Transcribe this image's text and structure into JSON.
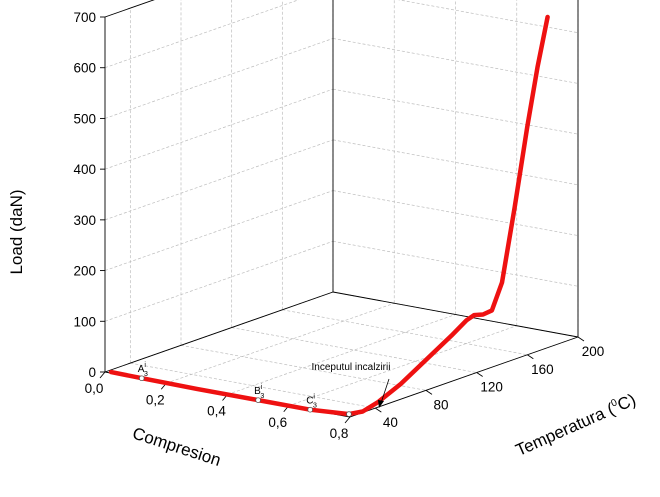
{
  "chart_data": {
    "type": "line",
    "projection": "3d",
    "axes": {
      "z": {
        "label": "Load (daN)",
        "ticks": [
          "0",
          "100",
          "200",
          "300",
          "400",
          "500",
          "600",
          "700"
        ],
        "range": [
          0,
          700
        ]
      },
      "x": {
        "label": "Compresion",
        "ticks": [
          "0,0",
          "0,2",
          "0,4",
          "0,6",
          "0,8"
        ],
        "range": [
          0,
          0.8
        ]
      },
      "y": {
        "label_main": "Temperatura (",
        "label_sup": "0",
        "label_end": "C)",
        "ticks": [
          "40",
          "80",
          "120",
          "160",
          "200"
        ],
        "range": [
          20,
          200
        ]
      }
    },
    "grid": true,
    "series": [
      {
        "color": "#ee1111",
        "points": [
          {
            "x": 0.02,
            "y": 20,
            "z": 2
          },
          {
            "x": 0.12,
            "y": 20,
            "z": 1
          },
          {
            "x": 0.3,
            "y": 20,
            "z": 0
          },
          {
            "x": 0.5,
            "y": 20,
            "z": 0
          },
          {
            "x": 0.67,
            "y": 20,
            "z": 0
          },
          {
            "x": 0.78,
            "y": 24,
            "z": 0
          },
          {
            "x": 0.8,
            "y": 30,
            "z": 2
          },
          {
            "x": 0.8,
            "y": 42,
            "z": 10
          },
          {
            "x": 0.8,
            "y": 60,
            "z": 30
          },
          {
            "x": 0.8,
            "y": 80,
            "z": 60
          },
          {
            "x": 0.8,
            "y": 100,
            "z": 90
          },
          {
            "x": 0.8,
            "y": 112,
            "z": 110
          },
          {
            "x": 0.8,
            "y": 118,
            "z": 115
          },
          {
            "x": 0.8,
            "y": 125,
            "z": 110
          },
          {
            "x": 0.8,
            "y": 132,
            "z": 112
          },
          {
            "x": 0.8,
            "y": 140,
            "z": 160
          },
          {
            "x": 0.8,
            "y": 150,
            "z": 300
          },
          {
            "x": 0.8,
            "y": 160,
            "z": 450
          },
          {
            "x": 0.8,
            "y": 168,
            "z": 560
          },
          {
            "x": 0.8,
            "y": 176,
            "z": 652
          }
        ]
      }
    ],
    "markers": [
      {
        "label": "A",
        "sup": "i",
        "sub": "3",
        "x": 0.12,
        "y": 20,
        "z": 1
      },
      {
        "label": "B",
        "sup": "i",
        "sub": "3",
        "x": 0.5,
        "y": 20,
        "z": 0
      },
      {
        "label": "C",
        "sup": "i",
        "sub": "3",
        "x": 0.67,
        "y": 20,
        "z": 0
      },
      {
        "label": "",
        "x": 0.78,
        "y": 24,
        "z": 0
      }
    ],
    "annotation": {
      "text": "Inceputul  incalzirii"
    }
  }
}
